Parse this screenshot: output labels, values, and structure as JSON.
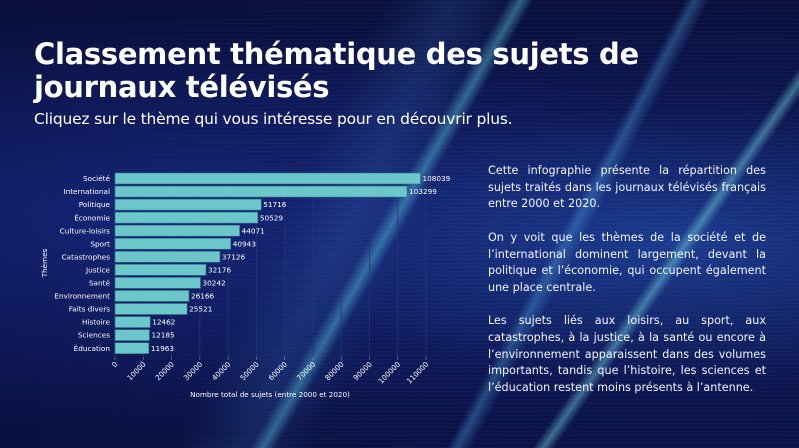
{
  "header": {
    "title": "Classement thématique des sujets de journaux télévisés",
    "subtitle": "Cliquez sur le thème qui vous intéresse pour en découvrir plus."
  },
  "description": {
    "paragraphs": [
      "Cette infographie présente la répartition des sujets traités dans les journaux télévisés français entre 2000 et 2020.",
      "On y voit que les thèmes de la société et de l’international dominent largement, devant la politique et l’économie, qui occupent également une place centrale.",
      "Les sujets liés aux loisirs, au sport, aux catastrophes, à la justice, à la santé ou encore à l’environnement apparaissent dans des volumes importants, tandis que l’histoire, les sciences et l’éducation restent moins présents à l’antenne."
    ]
  },
  "colors": {
    "bar": "#6cc7cb",
    "bar_border": "#2f6e86",
    "text": "#ffffff",
    "grid": "#2a3470"
  },
  "chart_data": {
    "type": "bar",
    "orientation": "horizontal",
    "title": "",
    "xlabel": "Nombre total de sujets (entre 2000 et 2020)",
    "ylabel": "Thèmes",
    "xlim": [
      0,
      110000
    ],
    "xticks": [
      0,
      10000,
      20000,
      30000,
      40000,
      50000,
      60000,
      70000,
      80000,
      90000,
      100000,
      110000
    ],
    "grid": true,
    "legend": "none",
    "data_labels": true,
    "categories": [
      "Société",
      "International",
      "Politique",
      "Économie",
      "Culture-loisirs",
      "Sport",
      "Catastrophes",
      "Justice",
      "Santé",
      "Environnement",
      "Faits divers",
      "Histoire",
      "Sciences",
      "Éducation"
    ],
    "values": [
      108039,
      103299,
      51716,
      50529,
      44071,
      40943,
      37126,
      32176,
      30242,
      26166,
      25521,
      12462,
      12185,
      11963
    ]
  }
}
